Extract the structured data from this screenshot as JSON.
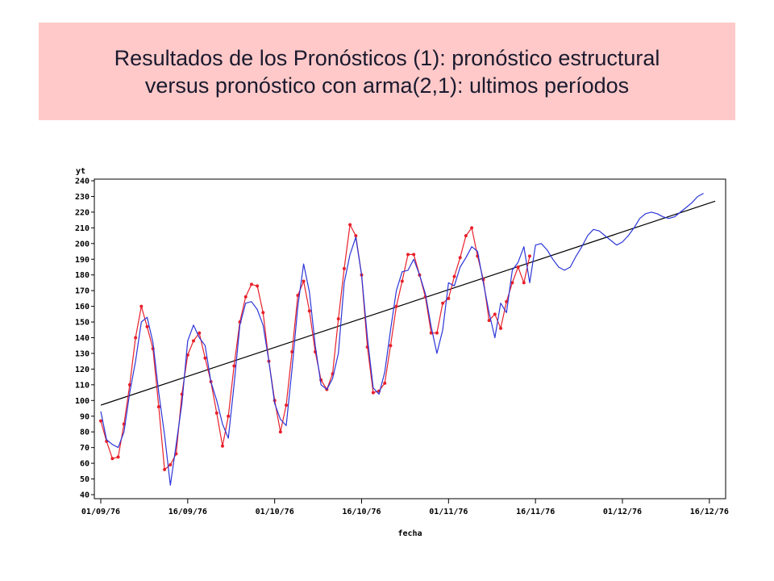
{
  "title": {
    "line1": "Resultados de los Pronósticos (1): pronóstico estructural",
    "line2": "versus pronóstico con arma(2,1): ultimos períodos"
  },
  "chart_data": {
    "type": "line",
    "ylabel": "yt",
    "xlabel": "fecha",
    "ylim": [
      40,
      240
    ],
    "yticks": [
      40,
      50,
      60,
      70,
      80,
      90,
      100,
      110,
      120,
      130,
      140,
      150,
      160,
      170,
      180,
      190,
      200,
      210,
      220,
      230,
      240
    ],
    "xticks": [
      "01/09/76",
      "16/09/76",
      "01/10/76",
      "16/10/76",
      "01/11/76",
      "16/11/76",
      "01/12/76",
      "16/12/76"
    ],
    "xlim_days": [
      0,
      106
    ],
    "grid": false,
    "colors": {
      "actual": "#e8202a",
      "arma": "#2b35d8",
      "structural": "#000000"
    },
    "series": [
      {
        "key": "actual",
        "x": [
          0,
          1,
          2,
          3,
          4,
          5,
          6,
          7,
          8,
          9,
          10,
          11,
          12,
          13,
          14,
          15,
          16,
          17,
          18,
          19,
          20,
          21,
          22,
          23,
          24,
          25,
          26,
          27,
          28,
          29,
          30,
          31,
          32,
          33,
          34,
          35,
          36,
          37,
          38,
          39,
          40,
          41,
          42,
          43,
          44,
          45,
          46,
          47,
          48,
          49,
          50,
          51,
          52,
          53,
          54,
          55,
          56,
          57,
          58,
          59,
          60,
          61,
          62,
          63,
          64,
          65,
          66,
          67,
          68,
          69,
          70,
          71,
          72,
          73,
          74,
          75,
          76,
          77
        ],
        "values": [
          87,
          74,
          63,
          64,
          85,
          110,
          140,
          160,
          147,
          133,
          96,
          56,
          59,
          66,
          104,
          129,
          138,
          143,
          127,
          112,
          92,
          71,
          90,
          122,
          150,
          166,
          174,
          173,
          156,
          125,
          100,
          80,
          97,
          131,
          167,
          176,
          157,
          131,
          113,
          107,
          117,
          152,
          184,
          212,
          205,
          180,
          134,
          105,
          106,
          111,
          135,
          160,
          176,
          193,
          193,
          180,
          166,
          143,
          143,
          162,
          165,
          179,
          191,
          205,
          210,
          192,
          177,
          151,
          155,
          146,
          163,
          175,
          185,
          175,
          192,
          null,
          null,
          null
        ],
        "markers": true
      },
      {
        "key": "arma",
        "x": [
          0,
          1,
          2,
          3,
          4,
          5,
          6,
          7,
          8,
          9,
          10,
          11,
          12,
          13,
          14,
          15,
          16,
          17,
          18,
          19,
          20,
          21,
          22,
          23,
          24,
          25,
          26,
          27,
          28,
          29,
          30,
          31,
          32,
          33,
          34,
          35,
          36,
          37,
          38,
          39,
          40,
          41,
          42,
          43,
          44,
          45,
          46,
          47,
          48,
          49,
          50,
          51,
          52,
          53,
          54,
          55,
          56,
          57,
          58,
          59,
          60,
          61,
          62,
          63,
          64,
          65,
          66,
          67,
          68,
          69,
          70,
          71,
          72,
          73,
          74,
          75,
          76,
          77,
          78,
          79,
          80,
          81,
          82,
          83,
          84,
          85,
          86,
          87,
          88,
          89,
          90,
          91,
          92,
          93,
          94,
          95,
          96,
          97,
          98,
          99,
          100,
          101,
          102,
          103,
          104,
          105
        ],
        "values": [
          93,
          75,
          72,
          70,
          80,
          105,
          125,
          150,
          153,
          137,
          105,
          78,
          46,
          72,
          98,
          138,
          148,
          140,
          135,
          112,
          100,
          85,
          76,
          110,
          148,
          162,
          163,
          158,
          148,
          125,
          98,
          88,
          84,
          120,
          160,
          187,
          169,
          135,
          110,
          107,
          114,
          130,
          175,
          193,
          204,
          180,
          140,
          108,
          104,
          118,
          145,
          170,
          182,
          183,
          190,
          180,
          168,
          147,
          130,
          145,
          175,
          173,
          185,
          191,
          198,
          195,
          175,
          156,
          140,
          162,
          156,
          183,
          188,
          198,
          175,
          199,
          200,
          196,
          190,
          185,
          183,
          185,
          192,
          198,
          205,
          209,
          208,
          205,
          202,
          199,
          201,
          205,
          210,
          216,
          219,
          220,
          219,
          217,
          216,
          217,
          220,
          223,
          226,
          230,
          232,
          null
        ],
        "markers": false
      },
      {
        "key": "structural",
        "x": [
          0,
          106
        ],
        "values": [
          97,
          227
        ],
        "markers": false
      }
    ]
  }
}
